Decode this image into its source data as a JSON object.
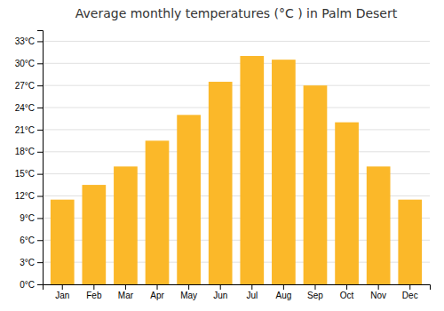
{
  "chart_data": {
    "type": "bar",
    "title": "Average monthly temperatures (°C ) in Palm Desert",
    "categories": [
      "Jan",
      "Feb",
      "Mar",
      "Apr",
      "May",
      "Jun",
      "Jul",
      "Aug",
      "Sep",
      "Oct",
      "Nov",
      "Dec"
    ],
    "values": [
      11.5,
      13.5,
      16.0,
      19.5,
      23.0,
      27.5,
      31.0,
      30.5,
      27.0,
      22.0,
      16.0,
      11.5
    ],
    "color": "#FBB829",
    "ylim": [
      0,
      34.5
    ],
    "yticks": [
      {
        "value": 0,
        "label": "0°C"
      },
      {
        "value": 3,
        "label": "3°C"
      },
      {
        "value": 6,
        "label": "6°C"
      },
      {
        "value": 9,
        "label": "9°C"
      },
      {
        "value": 12,
        "label": "12°C"
      },
      {
        "value": 15,
        "label": "15°C"
      },
      {
        "value": 18,
        "label": "18°C"
      },
      {
        "value": 21,
        "label": "21°C"
      },
      {
        "value": 24,
        "label": "24°C"
      },
      {
        "value": 27,
        "label": "27°C"
      },
      {
        "value": 30,
        "label": "30°C"
      },
      {
        "value": 33,
        "label": "33°C"
      }
    ],
    "grid": true
  }
}
